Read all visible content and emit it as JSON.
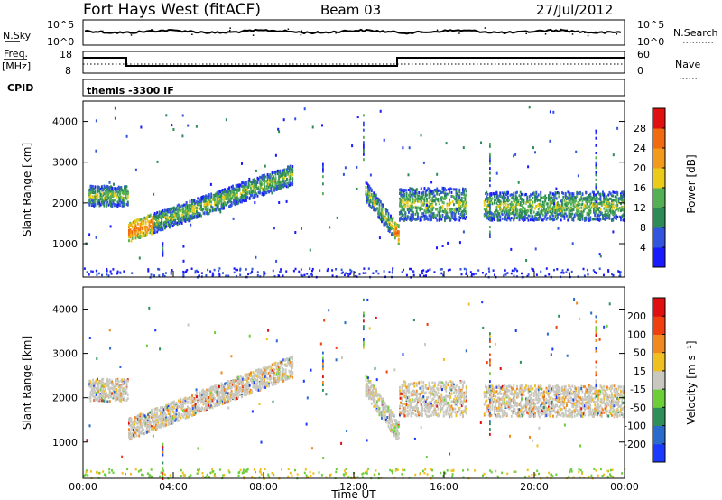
{
  "header": {
    "title": "Fort Hays West (fitACF)",
    "beam": "Beam 03",
    "date": "27/Jul/2012"
  },
  "aux": {
    "nsky_label": "N.Sky",
    "nsky_ticks": [
      "10^5",
      "10^0"
    ],
    "nsearch_label": "N.Search",
    "nsearch_ticks": [
      "10^5",
      "10^0"
    ],
    "freq_label": "Freq.",
    "freq_unit": "[MHz]",
    "freq_ticks": [
      "18",
      "8"
    ],
    "nave_label": "Nave",
    "nave_ticks": [
      "60",
      "0"
    ],
    "cpid_label": "CPID",
    "cpid_text": "themis -3300 IF"
  },
  "chart_data": [
    {
      "type": "heatmap",
      "panel": "power",
      "ylabel": "Slant Range [km]",
      "ylim": [
        180,
        4500
      ],
      "yticks": [
        "1000",
        "2000",
        "3000",
        "4000"
      ],
      "colorbar": {
        "label": "Power [dB]",
        "ticks": [
          "4",
          "8",
          "12",
          "16",
          "20",
          "24",
          "28"
        ],
        "colors": [
          "#1a1aff",
          "#3355dd",
          "#2e8b57",
          "#55b055",
          "#eacb1a",
          "#f39a1a",
          "#f06a10",
          "#e01010"
        ]
      },
      "features": [
        {
          "from": "00:15",
          "to": "02:00",
          "range_km": [
            1950,
            2450
          ],
          "note": "band"
        },
        {
          "from": "02:00",
          "to": "09:15",
          "range_km_start": 1300,
          "range_km_end": 2700,
          "note": "rising echo band"
        },
        {
          "from": "12:30",
          "to": "14:00",
          "range_km_start": 2300,
          "range_km_end": 1200,
          "note": "descending echo band"
        },
        {
          "from": "14:00",
          "to": "17:00",
          "range_km": [
            1600,
            2400
          ]
        },
        {
          "from": "17:45",
          "to": "24:00",
          "range_km": [
            1600,
            2300
          ]
        }
      ]
    },
    {
      "type": "heatmap",
      "panel": "velocity",
      "ylabel": "Slant Range [km]",
      "xlabel": "Time UT",
      "ylim": [
        180,
        4500
      ],
      "yticks": [
        "1000",
        "2000",
        "3000",
        "4000"
      ],
      "xticks": [
        "00:00",
        "04:00",
        "08:00",
        "12:00",
        "16:00",
        "20:00",
        "00:00"
      ],
      "colorbar": {
        "label": "Velocity [m s⁻¹]",
        "ticks": [
          "200",
          "100",
          "50",
          "15",
          "-15",
          "-50",
          "-100",
          "-200"
        ],
        "colors": [
          "#1a3aff",
          "#2a6acc",
          "#2f8f5a",
          "#6ccf3a",
          "#c8c8c0",
          "#f0c020",
          "#f08a20",
          "#f04010",
          "#e01010"
        ]
      }
    }
  ]
}
